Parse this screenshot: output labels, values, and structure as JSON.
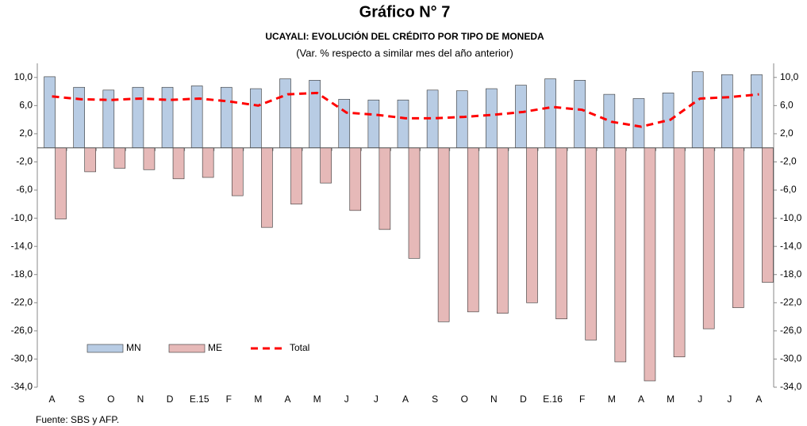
{
  "chart_data": {
    "type": "bar_line",
    "title": "Gráfico N° 7",
    "subtitle": "UCAYALI: EVOLUCIÓN DEL CRÉDITO POR TIPO DE MONEDA",
    "subtitle2": "(Var. % respecto a similar mes del año anterior)",
    "source": "Fuente: SBS y AFP.",
    "categories": [
      "A",
      "S",
      "O",
      "N",
      "D",
      "E.15",
      "F",
      "M",
      "A",
      "M",
      "J",
      "J",
      "A",
      "S",
      "O",
      "N",
      "D",
      "E.16",
      "F",
      "M",
      "A",
      "M",
      "J",
      "J",
      "A"
    ],
    "series": [
      {
        "name": "MN",
        "kind": "bar",
        "color": "#b8cce4",
        "values": [
          10.1,
          8.6,
          8.2,
          8.6,
          8.6,
          8.8,
          8.6,
          8.4,
          9.8,
          9.6,
          6.9,
          6.8,
          6.8,
          8.2,
          8.1,
          8.4,
          8.9,
          9.8,
          9.6,
          7.6,
          7.0,
          7.8,
          10.8,
          10.4,
          10.4
        ]
      },
      {
        "name": "ME",
        "kind": "bar",
        "color": "#e6b9b8",
        "values": [
          -10.1,
          -3.4,
          -2.9,
          -3.1,
          -4.4,
          -4.2,
          -6.8,
          -11.3,
          -8.0,
          -5.0,
          -8.9,
          -11.6,
          -15.7,
          -24.7,
          -23.3,
          -23.5,
          -22.0,
          -24.3,
          -27.3,
          -30.4,
          -33.1,
          -29.7,
          -25.7,
          -22.7,
          -19.1
        ]
      },
      {
        "name": "Total",
        "kind": "line",
        "color": "#ff0000",
        "values": [
          7.3,
          6.9,
          6.8,
          7.0,
          6.8,
          7.0,
          6.6,
          6.0,
          7.6,
          7.8,
          5.0,
          4.7,
          4.2,
          4.2,
          4.4,
          4.7,
          5.1,
          5.8,
          5.4,
          3.7,
          3.0,
          4.0,
          7.0,
          7.2,
          7.6
        ]
      }
    ],
    "ylim": [
      -34,
      12
    ],
    "yticks": [
      {
        "value": -34,
        "label": "-34,0"
      },
      {
        "value": -30,
        "label": "-30,0"
      },
      {
        "value": -26,
        "label": "-26,0"
      },
      {
        "value": -22,
        "label": "-22,0"
      },
      {
        "value": -18,
        "label": "-18,0"
      },
      {
        "value": -14,
        "label": "-14,0"
      },
      {
        "value": -10,
        "label": "-10,0"
      },
      {
        "value": -6,
        "label": "-6,0"
      },
      {
        "value": -2,
        "label": "-2,0"
      },
      {
        "value": 2,
        "label": "2,0"
      },
      {
        "value": 6,
        "label": "6,0"
      },
      {
        "value": 10,
        "label": "10,0"
      }
    ],
    "grid": false
  }
}
